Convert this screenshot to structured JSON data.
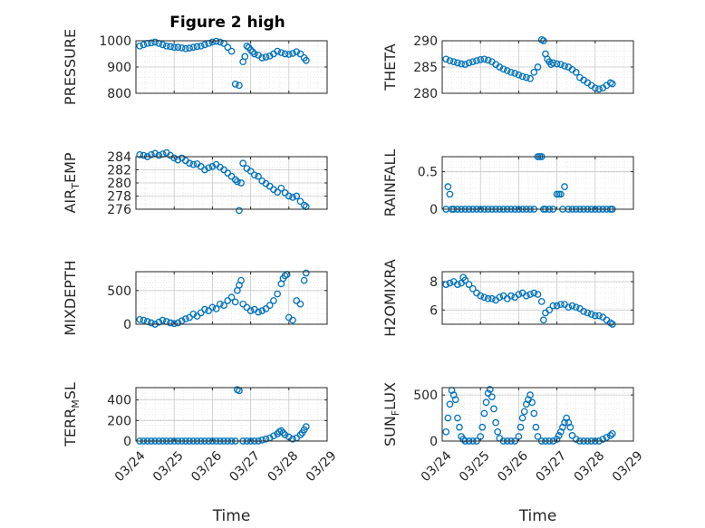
{
  "figure": {
    "title": "Figure 2 high"
  },
  "colors": {
    "marker": "#0072BD",
    "axis": "#262626",
    "grid": "#c8c8c8",
    "background": "#ffffff"
  },
  "chart_data": [
    {
      "id": "pressure",
      "type": "scatter",
      "title": "Figure 2 high",
      "ylabel": "PRESSURE",
      "ylim": [
        800,
        1000
      ],
      "yticks": [
        "800",
        "900",
        "1000"
      ],
      "ytick_values": [
        800,
        900,
        1000
      ],
      "xlim": [
        0,
        5
      ],
      "xticks": [
        "03/24",
        "03/25",
        "03/26",
        "03/27",
        "03/28",
        "03/29"
      ],
      "xticklabels_visible": false,
      "xlabel": "",
      "grid": true,
      "marker": "circle",
      "x": [
        0.1,
        0.2,
        0.3,
        0.4,
        0.5,
        0.6,
        0.7,
        0.8,
        0.9,
        1.0,
        1.1,
        1.2,
        1.3,
        1.4,
        1.5,
        1.6,
        1.7,
        1.8,
        1.9,
        2.0,
        2.1,
        2.2,
        2.3,
        2.4,
        2.5,
        2.6,
        2.7,
        2.8,
        2.85,
        2.9,
        2.95,
        3.0,
        3.05,
        3.1,
        3.2,
        3.3,
        3.4,
        3.5,
        3.6,
        3.7,
        3.8,
        3.9,
        4.0,
        4.1,
        4.2,
        4.3,
        4.4,
        4.45
      ],
      "y": [
        980,
        985,
        990,
        992,
        995,
        990,
        985,
        980,
        978,
        975,
        975,
        973,
        970,
        972,
        975,
        978,
        980,
        985,
        990,
        995,
        998,
        995,
        990,
        975,
        960,
        835,
        830,
        920,
        940,
        980,
        975,
        965,
        958,
        950,
        945,
        935,
        938,
        942,
        950,
        960,
        955,
        950,
        948,
        952,
        958,
        950,
        935,
        925
      ]
    },
    {
      "id": "theta",
      "type": "scatter",
      "ylabel": "THETA",
      "ylim": [
        280,
        290
      ],
      "yticks": [
        "280",
        "285",
        "290"
      ],
      "ytick_values": [
        280,
        285,
        290
      ],
      "xlim": [
        0,
        5
      ],
      "xticks": [
        "03/24",
        "03/25",
        "03/26",
        "03/27",
        "03/28",
        "03/29"
      ],
      "xticklabels_visible": false,
      "xlabel": "",
      "grid": true,
      "marker": "circle",
      "x": [
        0.1,
        0.2,
        0.3,
        0.4,
        0.5,
        0.6,
        0.7,
        0.8,
        0.9,
        1.0,
        1.1,
        1.2,
        1.3,
        1.4,
        1.5,
        1.6,
        1.7,
        1.8,
        1.9,
        2.0,
        2.1,
        2.2,
        2.3,
        2.4,
        2.5,
        2.6,
        2.65,
        2.7,
        2.75,
        2.8,
        2.85,
        2.9,
        3.0,
        3.1,
        3.2,
        3.3,
        3.4,
        3.5,
        3.6,
        3.7,
        3.8,
        3.9,
        4.0,
        4.1,
        4.2,
        4.3,
        4.4,
        4.45
      ],
      "y": [
        286.5,
        286.2,
        286,
        285.8,
        285.6,
        285.5,
        285.8,
        286,
        286.2,
        286.4,
        286.5,
        286.3,
        286,
        285.5,
        285,
        284.6,
        284.3,
        284,
        283.8,
        283.5,
        283.2,
        283,
        282.8,
        284,
        285,
        290.2,
        290,
        287.5,
        286.5,
        286,
        285.5,
        285.8,
        285.6,
        285.5,
        285.2,
        285,
        284.5,
        284,
        283,
        282.5,
        282,
        281.5,
        281,
        280.8,
        281,
        281.5,
        282,
        281.8
      ]
    },
    {
      "id": "air_temp",
      "type": "scatter",
      "ylabel": "AIR_TEMP",
      "ylim": [
        276,
        284
      ],
      "yticks": [
        "276",
        "278",
        "280",
        "282",
        "284"
      ],
      "ytick_values": [
        276,
        278,
        280,
        282,
        284
      ],
      "xlim": [
        0,
        5
      ],
      "xticks": [
        "03/24",
        "03/25",
        "03/26",
        "03/27",
        "03/28",
        "03/29"
      ],
      "xticklabels_visible": false,
      "xlabel": "",
      "grid": true,
      "marker": "circle",
      "x": [
        0.1,
        0.2,
        0.3,
        0.4,
        0.5,
        0.6,
        0.7,
        0.8,
        0.9,
        1.0,
        1.1,
        1.2,
        1.3,
        1.4,
        1.5,
        1.6,
        1.7,
        1.8,
        1.9,
        2.0,
        2.1,
        2.2,
        2.3,
        2.4,
        2.5,
        2.6,
        2.65,
        2.7,
        2.75,
        2.8,
        2.9,
        3.0,
        3.1,
        3.2,
        3.3,
        3.4,
        3.5,
        3.6,
        3.7,
        3.8,
        3.9,
        4.0,
        4.1,
        4.2,
        4.3,
        4.4,
        4.45
      ],
      "y": [
        284.3,
        284.2,
        284,
        284.3,
        284.5,
        284.2,
        284.4,
        284.6,
        284.2,
        283.8,
        283.5,
        283.8,
        283.4,
        283,
        282.8,
        282.9,
        282.5,
        282,
        282.3,
        282.5,
        282.8,
        282.4,
        282,
        281.5,
        281,
        280.5,
        280.2,
        275.8,
        280,
        283,
        282.2,
        281.8,
        281.2,
        281,
        280.3,
        279.9,
        279.5,
        279,
        278.6,
        279.2,
        278.5,
        278,
        277.8,
        278,
        277.2,
        276.6,
        276.4
      ]
    },
    {
      "id": "rainfall",
      "type": "scatter",
      "ylabel": "RAINFALL",
      "ylim": [
        0,
        0.7
      ],
      "yticks": [
        "0",
        "0.5"
      ],
      "ytick_values": [
        0,
        0.5
      ],
      "xlim": [
        0,
        5
      ],
      "xticks": [
        "03/24",
        "03/25",
        "03/26",
        "03/27",
        "03/28",
        "03/29"
      ],
      "xticklabels_visible": false,
      "xlabel": "",
      "grid": true,
      "marker": "circle",
      "x": [
        0.1,
        0.15,
        0.2,
        0.25,
        0.3,
        0.4,
        0.5,
        0.6,
        0.7,
        0.8,
        0.9,
        1.0,
        1.1,
        1.2,
        1.3,
        1.4,
        1.5,
        1.6,
        1.7,
        1.8,
        1.9,
        2.0,
        2.1,
        2.2,
        2.3,
        2.4,
        2.5,
        2.55,
        2.6,
        2.65,
        2.7,
        2.8,
        2.9,
        3.0,
        3.05,
        3.1,
        3.15,
        3.2,
        3.3,
        3.4,
        3.5,
        3.6,
        3.7,
        3.8,
        3.9,
        4.0,
        4.1,
        4.2,
        4.3,
        4.4,
        4.45
      ],
      "y": [
        0,
        0.3,
        0.2,
        0,
        0,
        0,
        0,
        0,
        0,
        0,
        0,
        0,
        0,
        0,
        0,
        0,
        0,
        0,
        0,
        0,
        0,
        0,
        0,
        0,
        0,
        0,
        0.7,
        0.7,
        0.7,
        0,
        0,
        0,
        0,
        0.2,
        0.2,
        0.2,
        0,
        0.3,
        0,
        0,
        0,
        0,
        0,
        0,
        0,
        0,
        0,
        0,
        0,
        0,
        0
      ]
    },
    {
      "id": "mixdepth",
      "type": "scatter",
      "ylabel": "MIXDEPTH",
      "ylim": [
        0,
        780
      ],
      "yticks": [
        "0",
        "500"
      ],
      "ytick_values": [
        0,
        500
      ],
      "xlim": [
        0,
        5
      ],
      "xticks": [
        "03/24",
        "03/25",
        "03/26",
        "03/27",
        "03/28",
        "03/29"
      ],
      "xticklabels_visible": false,
      "xlabel": "",
      "grid": true,
      "marker": "circle",
      "x": [
        0.1,
        0.2,
        0.3,
        0.4,
        0.5,
        0.6,
        0.7,
        0.8,
        0.9,
        1.0,
        1.1,
        1.2,
        1.3,
        1.4,
        1.5,
        1.6,
        1.7,
        1.8,
        1.9,
        2.0,
        2.1,
        2.2,
        2.3,
        2.4,
        2.5,
        2.6,
        2.65,
        2.7,
        2.75,
        2.8,
        2.9,
        3.0,
        3.1,
        3.2,
        3.3,
        3.4,
        3.5,
        3.6,
        3.7,
        3.8,
        3.85,
        3.9,
        3.95,
        4.0,
        4.1,
        4.2,
        4.3,
        4.4,
        4.45
      ],
      "y": [
        70,
        60,
        40,
        20,
        0,
        30,
        60,
        40,
        20,
        10,
        20,
        50,
        80,
        100,
        150,
        120,
        170,
        220,
        200,
        250,
        230,
        300,
        280,
        350,
        400,
        330,
        500,
        580,
        650,
        300,
        250,
        200,
        220,
        180,
        200,
        230,
        280,
        350,
        450,
        600,
        680,
        720,
        740,
        100,
        60,
        350,
        300,
        650,
        760
      ]
    },
    {
      "id": "h2omixra",
      "type": "scatter",
      "ylabel": "H2OMIXRA",
      "ylim": [
        5,
        8.7
      ],
      "yticks": [
        "6",
        "8"
      ],
      "ytick_values": [
        6,
        8
      ],
      "xlim": [
        0,
        5
      ],
      "xticks": [
        "03/24",
        "03/25",
        "03/26",
        "03/27",
        "03/28",
        "03/29"
      ],
      "xticklabels_visible": false,
      "xlabel": "",
      "grid": true,
      "marker": "circle",
      "x": [
        0.1,
        0.2,
        0.3,
        0.4,
        0.5,
        0.55,
        0.6,
        0.7,
        0.8,
        0.9,
        1.0,
        1.1,
        1.2,
        1.3,
        1.4,
        1.5,
        1.6,
        1.7,
        1.8,
        1.9,
        2.0,
        2.1,
        2.2,
        2.3,
        2.4,
        2.5,
        2.6,
        2.65,
        2.7,
        2.8,
        2.9,
        3.0,
        3.1,
        3.2,
        3.3,
        3.4,
        3.5,
        3.6,
        3.7,
        3.8,
        3.9,
        4.0,
        4.1,
        4.2,
        4.3,
        4.4,
        4.45
      ],
      "y": [
        7.8,
        7.9,
        8,
        7.8,
        7.9,
        8.3,
        8.1,
        7.8,
        7.5,
        7.2,
        7,
        6.9,
        6.8,
        6.8,
        6.7,
        6.9,
        7,
        6.8,
        7,
        6.9,
        7.1,
        7.2,
        7,
        7.1,
        7.2,
        7.1,
        6.6,
        5.3,
        5.8,
        6,
        6.3,
        6.3,
        6.4,
        6.4,
        6.2,
        6.3,
        6.2,
        6.1,
        5.9,
        5.8,
        5.7,
        5.6,
        5.6,
        5.5,
        5.3,
        5.1,
        5
      ]
    },
    {
      "id": "terr_msl",
      "type": "scatter",
      "ylabel": "TERR_MSL",
      "ylim": [
        0,
        520
      ],
      "yticks": [
        "0",
        "200",
        "400"
      ],
      "ytick_values": [
        0,
        200,
        400
      ],
      "xlim": [
        0,
        5
      ],
      "xticks": [
        "03/24",
        "03/25",
        "03/26",
        "03/27",
        "03/28",
        "03/29"
      ],
      "xticklabels": [
        "03/24",
        "03/25",
        "03/26",
        "03/27",
        "03/28",
        "03/29"
      ],
      "xticklabels_visible": true,
      "xlabel": "Time",
      "grid": true,
      "marker": "circle",
      "x": [
        0.1,
        0.2,
        0.3,
        0.4,
        0.5,
        0.6,
        0.7,
        0.8,
        0.9,
        1.0,
        1.1,
        1.2,
        1.3,
        1.4,
        1.5,
        1.6,
        1.7,
        1.8,
        1.9,
        2.0,
        2.1,
        2.2,
        2.3,
        2.4,
        2.5,
        2.6,
        2.65,
        2.7,
        2.8,
        2.9,
        3.0,
        3.1,
        3.2,
        3.3,
        3.4,
        3.5,
        3.6,
        3.7,
        3.75,
        3.8,
        3.85,
        3.9,
        4.0,
        4.1,
        4.2,
        4.3,
        4.35,
        4.4,
        4.45
      ],
      "y": [
        0,
        0,
        0,
        0,
        0,
        0,
        0,
        0,
        0,
        0,
        0,
        0,
        0,
        0,
        0,
        0,
        0,
        0,
        0,
        0,
        0,
        0,
        0,
        0,
        0,
        0,
        500,
        490,
        0,
        0,
        0,
        0,
        0,
        10,
        20,
        30,
        50,
        70,
        90,
        100,
        80,
        60,
        40,
        20,
        30,
        60,
        80,
        110,
        140
      ]
    },
    {
      "id": "sun_flux",
      "type": "scatter",
      "ylabel": "SUN_FLUX",
      "ylim": [
        0,
        580
      ],
      "yticks": [
        "0",
        "500"
      ],
      "ytick_values": [
        0,
        500
      ],
      "xlim": [
        0,
        5
      ],
      "xticks": [
        "03/24",
        "03/25",
        "03/26",
        "03/27",
        "03/28",
        "03/29"
      ],
      "xticklabels": [
        "03/24",
        "03/25",
        "03/26",
        "03/27",
        "03/28",
        "03/29"
      ],
      "xticklabels_visible": true,
      "xlabel": "Time",
      "grid": true,
      "marker": "circle",
      "x": [
        0.1,
        0.15,
        0.2,
        0.25,
        0.3,
        0.35,
        0.4,
        0.45,
        0.5,
        0.55,
        0.6,
        0.7,
        0.8,
        0.9,
        1.0,
        1.05,
        1.1,
        1.15,
        1.2,
        1.25,
        1.3,
        1.35,
        1.4,
        1.45,
        1.5,
        1.6,
        1.7,
        1.8,
        1.9,
        2.0,
        2.05,
        2.1,
        2.15,
        2.2,
        2.25,
        2.3,
        2.35,
        2.4,
        2.45,
        2.5,
        2.6,
        2.7,
        2.8,
        2.9,
        3.0,
        3.05,
        3.1,
        3.15,
        3.2,
        3.25,
        3.3,
        3.35,
        3.4,
        3.5,
        3.6,
        3.7,
        3.8,
        3.9,
        4.0,
        4.1,
        4.2,
        4.3,
        4.4,
        4.45
      ],
      "y": [
        100,
        250,
        400,
        550,
        500,
        450,
        250,
        150,
        50,
        20,
        0,
        0,
        0,
        0,
        50,
        150,
        300,
        420,
        520,
        560,
        480,
        350,
        200,
        100,
        30,
        0,
        0,
        0,
        0,
        50,
        150,
        250,
        320,
        400,
        450,
        500,
        420,
        300,
        150,
        50,
        0,
        0,
        0,
        0,
        20,
        60,
        100,
        150,
        200,
        250,
        200,
        150,
        60,
        20,
        0,
        0,
        0,
        0,
        0,
        0,
        20,
        40,
        60,
        80
      ]
    }
  ]
}
